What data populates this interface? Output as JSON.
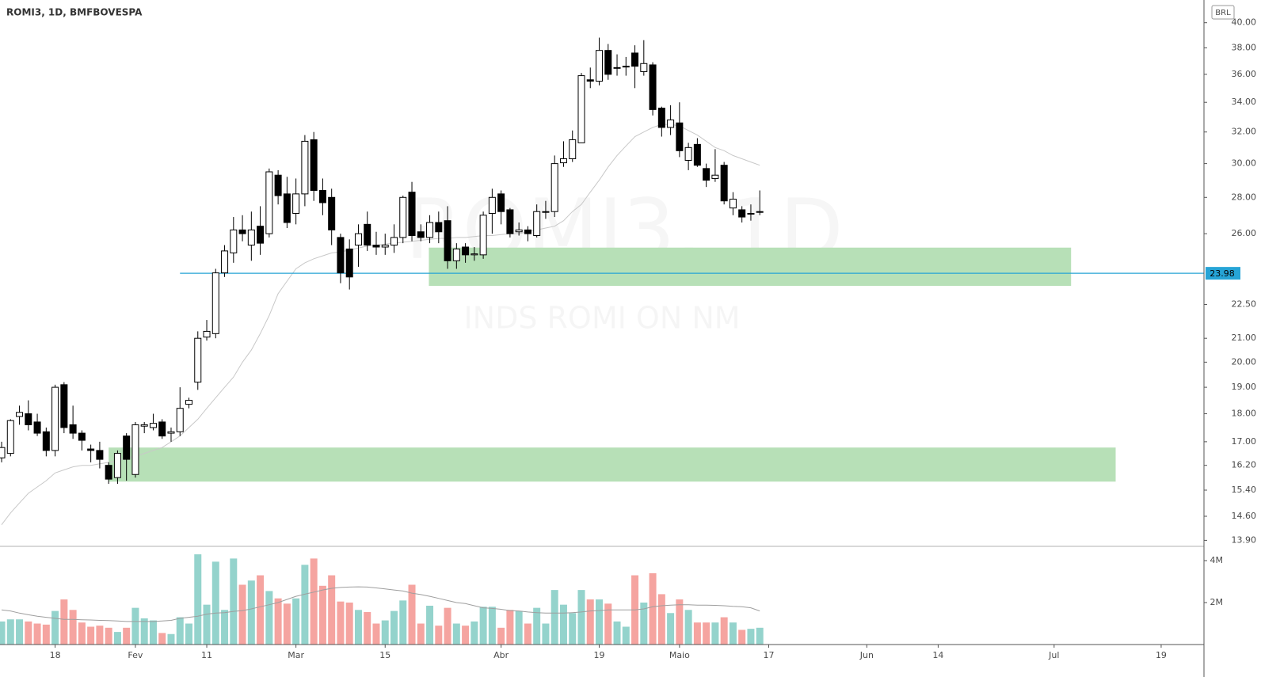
{
  "chart_data": {
    "type": "candlestick",
    "title": "ROMI3, 1D, BMFBOVESPA",
    "watermark": "ROMI3, 1D",
    "watermark_subtitle": "INDS ROMI ON NM",
    "currency": "BRL",
    "log_scale": true,
    "ylim": [
      13.73,
      41.9
    ],
    "yticks": [
      {
        "value": 40,
        "label": "40.00"
      },
      {
        "value": 38,
        "label": "38.00"
      },
      {
        "value": 36,
        "label": "36.00"
      },
      {
        "value": 34,
        "label": "34.00"
      },
      {
        "value": 32,
        "label": "32.00"
      },
      {
        "value": 30,
        "label": "30.00"
      },
      {
        "value": 28,
        "label": "28.00"
      },
      {
        "value": 26,
        "label": "26.00"
      },
      {
        "value": 22.5,
        "label": "22.50"
      },
      {
        "value": 21,
        "label": "21.00"
      },
      {
        "value": 20,
        "label": "20.00"
      },
      {
        "value": 19,
        "label": "19.00"
      },
      {
        "value": 18,
        "label": "18.00"
      },
      {
        "value": 17,
        "label": "17.00"
      },
      {
        "value": 16.2,
        "label": "16.20"
      },
      {
        "value": 15.4,
        "label": "15.40"
      },
      {
        "value": 14.6,
        "label": "14.60"
      },
      {
        "value": 13.9,
        "label": "13.90"
      }
    ],
    "xlim": [
      -0.18,
      134.8
    ],
    "xticks": [
      {
        "value": 6,
        "label": "18"
      },
      {
        "value": 15,
        "label": "Fev"
      },
      {
        "value": 23,
        "label": "11"
      },
      {
        "value": 33,
        "label": "Mar"
      },
      {
        "value": 43,
        "label": "15"
      },
      {
        "value": 56,
        "label": "Abr"
      },
      {
        "value": 67,
        "label": "19"
      },
      {
        "value": 76,
        "label": "Maio"
      },
      {
        "value": 86,
        "label": "17"
      },
      {
        "value": 97,
        "label": "Jun"
      },
      {
        "value": 105,
        "label": "14"
      },
      {
        "value": 118,
        "label": "Jul"
      },
      {
        "value": 130,
        "label": "19"
      }
    ],
    "candles": {
      "up_color": "#ffffff",
      "down_color": "#000000",
      "border_color": "#000000",
      "open": [
        16.45,
        16.6,
        17.9,
        18,
        17.7,
        17.35,
        16.7,
        19.1,
        17.6,
        17.3,
        16.75,
        16.7,
        16.2,
        15.8,
        17.2,
        15.9,
        17.55,
        17.5,
        17.7,
        17.3,
        17.35,
        18.35,
        19.2,
        21.05,
        21.2,
        24,
        25,
        26.2,
        25.4,
        26.4,
        26,
        29.3,
        28.2,
        27.1,
        28.2,
        31.5,
        28.4,
        28,
        25.8,
        25.2,
        25.4,
        26.5,
        25.4,
        25.3,
        25.4,
        25.8,
        28.3,
        26.1,
        25.8,
        26.6,
        26.7,
        24.6,
        25.3,
        24.9,
        24.9,
        27.1,
        28.2,
        27.3,
        26.1,
        26.2,
        25.9,
        27.2,
        27.2,
        30.05,
        30.3,
        31.3,
        35.6,
        35.5,
        37.8,
        36.5,
        36.6,
        37.6,
        36.2,
        36.7,
        33.6,
        32.3,
        32.6,
        30.2,
        31.2,
        29.7,
        29.1,
        29.9,
        27.4,
        27.3,
        27.1,
        27.2
      ],
      "high": [
        17,
        17.8,
        18.3,
        18.5,
        18,
        17.5,
        19.1,
        19.2,
        18.3,
        17.4,
        16.9,
        17,
        16.3,
        16.7,
        17.3,
        17.7,
        17.7,
        18,
        17.8,
        17.5,
        19,
        18.6,
        21.3,
        21.8,
        24.2,
        25.4,
        26.9,
        27,
        27.2,
        27.5,
        29.7,
        29.6,
        29.2,
        29.1,
        31.8,
        32,
        29.1,
        28.5,
        26,
        25.7,
        26.5,
        27.2,
        26.1,
        26,
        26.5,
        28.1,
        28.9,
        26.5,
        27,
        27.2,
        27.5,
        25.5,
        25.5,
        25.3,
        27.2,
        28.5,
        28.4,
        27.4,
        26.6,
        26.4,
        27.6,
        27.8,
        30.5,
        31.4,
        32.1,
        36.1,
        36.5,
        38.8,
        38.3,
        37.5,
        37.3,
        38.2,
        38.6,
        36.9,
        33.7,
        33.8,
        34,
        31.3,
        31.6,
        30,
        30.9,
        30.1,
        28.3,
        27.5,
        27.6,
        28.4
      ],
      "low": [
        16.3,
        16.5,
        17.6,
        17.4,
        17.2,
        16.5,
        16.5,
        17.3,
        17.1,
        16.7,
        16.3,
        16.1,
        15.6,
        15.6,
        15.7,
        15.8,
        17.3,
        17.4,
        17.1,
        17,
        17.2,
        18.2,
        18.9,
        20.9,
        21,
        23.8,
        24.5,
        25.6,
        24.6,
        24.9,
        25.8,
        27.6,
        26.3,
        26.5,
        27.5,
        27.8,
        27,
        25.4,
        23.5,
        23.2,
        24.3,
        25.1,
        24.9,
        24.9,
        25,
        25.5,
        25.6,
        25.6,
        25.5,
        25.5,
        24.2,
        24.2,
        24.5,
        24.6,
        24.7,
        26,
        26.5,
        25.8,
        25.9,
        25.6,
        25.8,
        26.8,
        26.9,
        29.8,
        30.1,
        31.3,
        35,
        35.2,
        35.6,
        35.9,
        35.9,
        35,
        35.9,
        33.1,
        31.7,
        31.8,
        30.4,
        29.6,
        29.8,
        28.6,
        28.9,
        27.6,
        27,
        26.6,
        26.7,
        27
      ],
      "close": [
        16.8,
        17.75,
        18.05,
        17.6,
        17.3,
        16.7,
        19,
        17.5,
        17.3,
        17.05,
        16.7,
        16.4,
        15.75,
        16.6,
        16.4,
        17.6,
        17.6,
        17.65,
        17.2,
        17.35,
        18.2,
        18.5,
        21,
        21.3,
        24,
        25.1,
        26.2,
        26,
        26.2,
        25.5,
        29.5,
        28.1,
        26.6,
        28.2,
        31.4,
        28.4,
        27.7,
        26.2,
        24,
        23.8,
        26,
        25.4,
        25.3,
        25.4,
        25.8,
        28,
        25.9,
        25.8,
        26.6,
        26.1,
        24.6,
        25.2,
        24.9,
        24.95,
        27,
        28,
        27.2,
        26,
        26.2,
        26,
        27.2,
        27.2,
        30,
        30.3,
        31.5,
        35.9,
        35.5,
        37.8,
        36,
        36.5,
        36.6,
        36.6,
        36.8,
        33.5,
        32.3,
        32.8,
        30.8,
        31,
        29.9,
        29,
        29.3,
        27.8,
        27.9,
        26.9,
        27.1,
        27.2
      ]
    },
    "ma": {
      "color": "#c8c8c8",
      "values": [
        14.35,
        14.7,
        15.0,
        15.3,
        15.5,
        15.7,
        15.95,
        16.05,
        16.15,
        16.2,
        16.2,
        16.25,
        16.3,
        16.35,
        16.45,
        16.5,
        16.6,
        16.7,
        16.8,
        17.0,
        17.2,
        17.5,
        17.8,
        18.2,
        18.6,
        19.0,
        19.4,
        20.0,
        20.5,
        21.2,
        22.0,
        23.0,
        23.6,
        24.2,
        24.5,
        24.7,
        24.85,
        25.0,
        25.05,
        25.15,
        25.25,
        25.35,
        25.4,
        25.45,
        25.5,
        25.55,
        25.6,
        25.65,
        25.7,
        25.75,
        25.75,
        25.8,
        25.8,
        25.85,
        25.9,
        25.9,
        25.95,
        26.0,
        26.0,
        26.1,
        26.2,
        26.3,
        26.4,
        26.7,
        27.2,
        27.6,
        28.3,
        29.0,
        29.8,
        30.5,
        31.1,
        31.7,
        32.0,
        32.3,
        32.5,
        32.5,
        32.4,
        32.1,
        31.8,
        31.4,
        31.0,
        30.8,
        30.5,
        30.3,
        30.1,
        29.9
      ]
    },
    "hline": {
      "value": 23.98,
      "from": 20,
      "color": "#26a4d6"
    },
    "zones": [
      {
        "x": [
          47.9,
          119.9
        ],
        "y": [
          23.37,
          25.27
        ]
      },
      {
        "x": [
          12.0,
          124.9
        ],
        "y": [
          15.67,
          16.8
        ]
      }
    ],
    "zone_color": "#b3deb3",
    "volume": {
      "up_color": "#94d3cc",
      "down_color": "#f5a4a0",
      "ma_color": "#9e9e9e",
      "ylim": [
        0,
        4.68
      ],
      "yticks": [
        {
          "value": 4,
          "label": "4M"
        },
        {
          "value": 2,
          "label": "2M"
        }
      ],
      "values": [
        1.1,
        1.2,
        1.2,
        1.1,
        1.0,
        0.95,
        1.6,
        2.15,
        1.65,
        1.05,
        0.85,
        0.9,
        0.8,
        0.6,
        0.8,
        1.75,
        1.25,
        1.15,
        0.55,
        0.5,
        1.3,
        1.0,
        4.3,
        1.9,
        3.95,
        1.65,
        4.1,
        2.85,
        3.05,
        3.3,
        2.55,
        2.2,
        1.95,
        2.2,
        3.8,
        4.1,
        2.8,
        3.3,
        2.05,
        2.0,
        1.65,
        1.55,
        1.0,
        1.15,
        1.6,
        2.1,
        2.85,
        1.0,
        1.85,
        0.9,
        1.75,
        1.0,
        0.9,
        1.1,
        1.8,
        1.8,
        0.8,
        1.65,
        1.6,
        1.0,
        1.75,
        1.0,
        2.6,
        1.9,
        1.5,
        2.6,
        2.15,
        2.15,
        1.95,
        1.1,
        0.85,
        3.3,
        2.0,
        3.4,
        2.4,
        1.5,
        2.15,
        1.65,
        1.05,
        1.05,
        1.05,
        1.3,
        1.05,
        0.7,
        0.75,
        0.8
      ],
      "ma": [
        1.65,
        1.6,
        1.5,
        1.42,
        1.35,
        1.3,
        1.25,
        1.2,
        1.2,
        1.18,
        1.17,
        1.15,
        1.14,
        1.12,
        1.1,
        1.1,
        1.1,
        1.1,
        1.12,
        1.15,
        1.25,
        1.3,
        1.35,
        1.45,
        1.5,
        1.52,
        1.58,
        1.62,
        1.7,
        1.8,
        1.9,
        2.0,
        2.15,
        2.3,
        2.4,
        2.5,
        2.6,
        2.68,
        2.72,
        2.74,
        2.75,
        2.74,
        2.7,
        2.65,
        2.6,
        2.55,
        2.45,
        2.38,
        2.3,
        2.2,
        2.1,
        2.0,
        1.95,
        1.85,
        1.75,
        1.72,
        1.68,
        1.62,
        1.6,
        1.55,
        1.52,
        1.5,
        1.5,
        1.5,
        1.52,
        1.55,
        1.6,
        1.62,
        1.65,
        1.65,
        1.65,
        1.65,
        1.7,
        1.8,
        1.85,
        1.88,
        1.9,
        1.9,
        1.88,
        1.88,
        1.87,
        1.85,
        1.82,
        1.8,
        1.75,
        1.6
      ]
    }
  }
}
